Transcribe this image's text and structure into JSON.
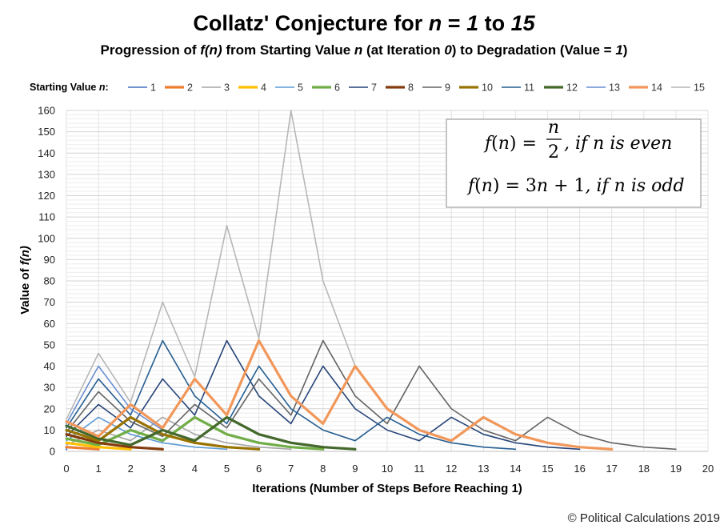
{
  "chart_data": {
    "type": "line",
    "title_parts": [
      "Collatz' Conjecture for ",
      "n",
      " = ",
      "1",
      " to ",
      "15"
    ],
    "subtitle_parts": [
      "Progression of ",
      "f(n)",
      " from Starting Value ",
      "n",
      " (at Iteration ",
      "0",
      ") to Degradation (Value = ",
      "1",
      ")"
    ],
    "legend_title": "Starting Value n:",
    "xlabel": "Iterations (Number of Steps Before Reaching 1)",
    "ylabel": "Value of f(n)",
    "xlim": [
      0,
      20
    ],
    "ylim": [
      0,
      160
    ],
    "x_ticks": [
      0,
      1,
      2,
      3,
      4,
      5,
      6,
      7,
      8,
      9,
      10,
      11,
      12,
      13,
      14,
      15,
      16,
      17,
      18,
      19,
      20
    ],
    "y_ticks": [
      0,
      10,
      20,
      30,
      40,
      50,
      60,
      70,
      80,
      90,
      100,
      110,
      120,
      130,
      140,
      150,
      160
    ],
    "grid": "major and minor horizontal, vertical at integer x",
    "legend_position": "top",
    "annotation": {
      "line1": {
        "lhs": "f(n) = ",
        "num": "n",
        "den": "2",
        "rhs": ", if n is even"
      },
      "line2": "f(n) = 3n + 1, if n is odd"
    },
    "credit": "© Political Calculations 2019",
    "series": [
      {
        "name": "1",
        "color": "#4472C4",
        "width": 1.6,
        "values": [
          1
        ]
      },
      {
        "name": "2",
        "color": "#ED7D31",
        "width": 3.2,
        "values": [
          2,
          1
        ]
      },
      {
        "name": "3",
        "color": "#A5A5A5",
        "width": 1.6,
        "values": [
          3,
          10,
          5,
          16,
          8,
          4,
          2,
          1
        ]
      },
      {
        "name": "4",
        "color": "#FFC000",
        "width": 3.2,
        "values": [
          4,
          2,
          1
        ]
      },
      {
        "name": "5",
        "color": "#5B9BD5",
        "width": 1.6,
        "values": [
          5,
          16,
          8,
          4,
          2,
          1
        ]
      },
      {
        "name": "6",
        "color": "#70AD47",
        "width": 3.2,
        "values": [
          6,
          3,
          10,
          5,
          16,
          8,
          4,
          2,
          1
        ]
      },
      {
        "name": "7",
        "color": "#264478",
        "width": 1.6,
        "values": [
          7,
          22,
          11,
          34,
          17,
          52,
          26,
          13,
          40,
          20,
          10,
          5,
          16,
          8,
          4,
          2,
          1
        ]
      },
      {
        "name": "8",
        "color": "#843C0C",
        "width": 3.2,
        "values": [
          8,
          4,
          2,
          1
        ]
      },
      {
        "name": "9",
        "color": "#636363",
        "width": 1.6,
        "values": [
          9,
          28,
          14,
          7,
          22,
          11,
          34,
          17,
          52,
          26,
          13,
          40,
          20,
          10,
          5,
          16,
          8,
          4,
          2,
          1
        ]
      },
      {
        "name": "10",
        "color": "#997300",
        "width": 3.2,
        "values": [
          10,
          5,
          16,
          8,
          4,
          2,
          1
        ]
      },
      {
        "name": "11",
        "color": "#255E91",
        "width": 1.6,
        "values": [
          11,
          34,
          17,
          52,
          26,
          13,
          40,
          20,
          10,
          5,
          16,
          8,
          4,
          2,
          1
        ]
      },
      {
        "name": "12",
        "color": "#43682B",
        "width": 3.2,
        "values": [
          12,
          6,
          3,
          10,
          5,
          16,
          8,
          4,
          2,
          1
        ]
      },
      {
        "name": "13",
        "color": "#698ED0",
        "width": 1.6,
        "values": [
          13,
          40,
          20,
          10,
          5,
          16,
          8,
          4,
          2,
          1
        ]
      },
      {
        "name": "14",
        "color": "#F1975A",
        "width": 3.2,
        "values": [
          14,
          7,
          22,
          11,
          34,
          17,
          52,
          26,
          13,
          40,
          20,
          10,
          5,
          16,
          8,
          4,
          2,
          1
        ]
      },
      {
        "name": "15",
        "color": "#B7B7B7",
        "width": 1.6,
        "values": [
          15,
          46,
          23,
          70,
          35,
          106,
          53,
          160,
          80,
          40,
          20,
          10,
          5,
          16,
          8,
          4,
          2,
          1
        ]
      }
    ]
  }
}
